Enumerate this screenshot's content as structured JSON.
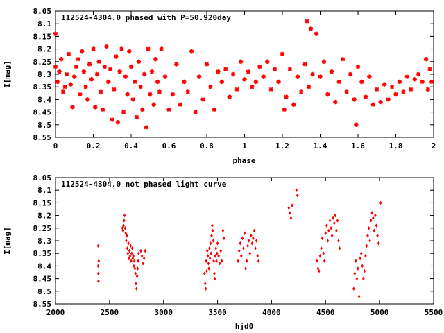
{
  "chart_data": [
    {
      "type": "scatter",
      "title": "112524-4304.0 phased with P=50.920day",
      "xlabel": "phase",
      "ylabel": "I[mag]",
      "xlim": [
        0,
        2
      ],
      "ylim": [
        8.55,
        8.05
      ],
      "y_inverted": true,
      "grid": false,
      "marker": "star",
      "color": "#ff0000",
      "xticks": [
        0,
        0.2,
        0.4,
        0.6,
        0.8,
        1,
        1.2,
        1.4,
        1.6,
        1.8,
        2
      ],
      "xtick_labels": [
        "0",
        "0.2",
        "0.4",
        "0.6",
        "0.8",
        "1",
        "1.2",
        "1.4",
        "1.6",
        "1.8",
        "2"
      ],
      "yticks": [
        8.05,
        8.1,
        8.15,
        8.2,
        8.25,
        8.3,
        8.35,
        8.4,
        8.45,
        8.5,
        8.55
      ],
      "ytick_labels": [
        "8.05",
        "8.1",
        "8.15",
        "8.2",
        "8.25",
        "8.3",
        "8.35",
        "8.4",
        "8.45",
        "8.5",
        "8.55"
      ],
      "points": [
        [
          0.0,
          8.14
        ],
        [
          0.0,
          8.27
        ],
        [
          0.01,
          8.33
        ],
        [
          0.02,
          8.29
        ],
        [
          0.03,
          8.24
        ],
        [
          0.04,
          8.37
        ],
        [
          0.05,
          8.35
        ],
        [
          0.06,
          8.3
        ],
        [
          0.07,
          8.22
        ],
        [
          0.08,
          8.34
        ],
        [
          0.09,
          8.43
        ],
        [
          0.1,
          8.31
        ],
        [
          0.11,
          8.27
        ],
        [
          0.12,
          8.24
        ],
        [
          0.13,
          8.38
        ],
        [
          0.14,
          8.21
        ],
        [
          0.15,
          8.29
        ],
        [
          0.16,
          8.35
        ],
        [
          0.17,
          8.4
        ],
        [
          0.18,
          8.26
        ],
        [
          0.19,
          8.32
        ],
        [
          0.2,
          8.2
        ],
        [
          0.21,
          8.43
        ],
        [
          0.22,
          8.3
        ],
        [
          0.23,
          8.25
        ],
        [
          0.24,
          8.37
        ],
        [
          0.25,
          8.44
        ],
        [
          0.26,
          8.27
        ],
        [
          0.27,
          8.19
        ],
        [
          0.28,
          8.33
        ],
        [
          0.29,
          8.28
        ],
        [
          0.3,
          8.48
        ],
        [
          0.31,
          8.36
        ],
        [
          0.32,
          8.23
        ],
        [
          0.33,
          8.49
        ],
        [
          0.34,
          8.29
        ],
        [
          0.35,
          8.2
        ],
        [
          0.36,
          8.45
        ],
        [
          0.37,
          8.31
        ],
        [
          0.38,
          8.38
        ],
        [
          0.39,
          8.21
        ],
        [
          0.4,
          8.27
        ],
        [
          0.41,
          8.4
        ],
        [
          0.42,
          8.33
        ],
        [
          0.43,
          8.47
        ],
        [
          0.44,
          8.25
        ],
        [
          0.45,
          8.35
        ],
        [
          0.46,
          8.44
        ],
        [
          0.47,
          8.3
        ],
        [
          0.48,
          8.51
        ],
        [
          0.49,
          8.2
        ],
        [
          0.5,
          8.38
        ],
        [
          0.51,
          8.29
        ],
        [
          0.52,
          8.42
        ],
        [
          0.53,
          8.24
        ],
        [
          0.54,
          8.33
        ],
        [
          0.55,
          8.37
        ],
        [
          0.56,
          8.2
        ],
        [
          0.58,
          8.31
        ],
        [
          0.6,
          8.44
        ],
        [
          0.62,
          8.38
        ],
        [
          0.64,
          8.26
        ],
        [
          0.66,
          8.42
        ],
        [
          0.68,
          8.33
        ],
        [
          0.7,
          8.37
        ],
        [
          0.72,
          8.21
        ],
        [
          0.74,
          8.45
        ],
        [
          0.76,
          8.31
        ],
        [
          0.78,
          8.4
        ],
        [
          0.8,
          8.26
        ],
        [
          0.82,
          8.35
        ],
        [
          0.84,
          8.44
        ],
        [
          0.86,
          8.29
        ],
        [
          0.88,
          8.33
        ],
        [
          0.9,
          8.28
        ],
        [
          0.92,
          8.39
        ],
        [
          0.94,
          8.3
        ],
        [
          0.96,
          8.36
        ],
        [
          0.98,
          8.25
        ],
        [
          1.0,
          8.32
        ],
        [
          1.02,
          8.29
        ],
        [
          1.04,
          8.35
        ],
        [
          1.06,
          8.33
        ],
        [
          1.08,
          8.27
        ],
        [
          1.1,
          8.31
        ],
        [
          1.12,
          8.25
        ],
        [
          1.14,
          8.36
        ],
        [
          1.16,
          8.28
        ],
        [
          1.18,
          8.33
        ],
        [
          1.2,
          8.22
        ],
        [
          1.21,
          8.44
        ],
        [
          1.22,
          8.39
        ],
        [
          1.24,
          8.28
        ],
        [
          1.26,
          8.42
        ],
        [
          1.28,
          8.31
        ],
        [
          1.3,
          8.37
        ],
        [
          1.32,
          8.26
        ],
        [
          1.33,
          8.09
        ],
        [
          1.34,
          8.35
        ],
        [
          1.35,
          8.12
        ],
        [
          1.36,
          8.3
        ],
        [
          1.38,
          8.14
        ],
        [
          1.4,
          8.31
        ],
        [
          1.42,
          8.25
        ],
        [
          1.44,
          8.38
        ],
        [
          1.46,
          8.29
        ],
        [
          1.48,
          8.41
        ],
        [
          1.5,
          8.33
        ],
        [
          1.52,
          8.24
        ],
        [
          1.54,
          8.37
        ],
        [
          1.56,
          8.3
        ],
        [
          1.58,
          8.4
        ],
        [
          1.59,
          8.5
        ],
        [
          1.6,
          8.27
        ],
        [
          1.62,
          8.33
        ],
        [
          1.64,
          8.39
        ],
        [
          1.66,
          8.31
        ],
        [
          1.68,
          8.42
        ],
        [
          1.7,
          8.36
        ],
        [
          1.72,
          8.41
        ],
        [
          1.74,
          8.34
        ],
        [
          1.76,
          8.4
        ],
        [
          1.78,
          8.35
        ],
        [
          1.8,
          8.38
        ],
        [
          1.82,
          8.33
        ],
        [
          1.84,
          8.37
        ],
        [
          1.86,
          8.31
        ],
        [
          1.88,
          8.36
        ],
        [
          1.9,
          8.32
        ],
        [
          1.92,
          8.3
        ],
        [
          1.94,
          8.33
        ],
        [
          1.96,
          8.24
        ],
        [
          1.97,
          8.36
        ],
        [
          1.98,
          8.28
        ],
        [
          1.99,
          8.33
        ]
      ]
    },
    {
      "type": "scatter",
      "title": "112524-4304.0 not phased light curve",
      "xlabel": "hjd0",
      "ylabel": "I[mag]",
      "xlim": [
        2000,
        5500
      ],
      "ylim": [
        8.55,
        8.05
      ],
      "y_inverted": true,
      "grid": false,
      "marker": "diamond",
      "color": "#ff0000",
      "xticks": [
        2000,
        2500,
        3000,
        3500,
        4000,
        4500,
        5000,
        5500
      ],
      "xtick_labels": [
        "2000",
        "2500",
        "3000",
        "3500",
        "4000",
        "4500",
        "5000",
        "5500"
      ],
      "yticks": [
        8.05,
        8.1,
        8.15,
        8.2,
        8.25,
        8.3,
        8.35,
        8.4,
        8.45,
        8.5,
        8.55
      ],
      "ytick_labels": [
        "8.05",
        "8.1",
        "8.15",
        "8.2",
        "8.25",
        "8.3",
        "8.35",
        "8.4",
        "8.45",
        "8.5",
        "8.55"
      ],
      "points": [
        [
          2395,
          8.32
        ],
        [
          2395,
          8.4
        ],
        [
          2397,
          8.43
        ],
        [
          2398,
          8.46
        ],
        [
          2400,
          8.38
        ],
        [
          2620,
          8.25
        ],
        [
          2625,
          8.26
        ],
        [
          2630,
          8.24
        ],
        [
          2635,
          8.22
        ],
        [
          2640,
          8.2
        ],
        [
          2645,
          8.25
        ],
        [
          2650,
          8.27
        ],
        [
          2655,
          8.3
        ],
        [
          2660,
          8.28
        ],
        [
          2665,
          8.33
        ],
        [
          2670,
          8.35
        ],
        [
          2675,
          8.31
        ],
        [
          2680,
          8.37
        ],
        [
          2685,
          8.34
        ],
        [
          2690,
          8.36
        ],
        [
          2695,
          8.32
        ],
        [
          2700,
          8.38
        ],
        [
          2705,
          8.35
        ],
        [
          2710,
          8.33
        ],
        [
          2715,
          8.37
        ],
        [
          2720,
          8.36
        ],
        [
          2725,
          8.4
        ],
        [
          2730,
          8.38
        ],
        [
          2735,
          8.41
        ],
        [
          2740,
          8.43
        ],
        [
          2745,
          8.47
        ],
        [
          2750,
          8.49
        ],
        [
          2755,
          8.44
        ],
        [
          2760,
          8.41
        ],
        [
          2765,
          8.38
        ],
        [
          2770,
          8.35
        ],
        [
          2790,
          8.34
        ],
        [
          2800,
          8.36
        ],
        [
          2810,
          8.39
        ],
        [
          2820,
          8.37
        ],
        [
          2830,
          8.34
        ],
        [
          3380,
          8.43
        ],
        [
          3385,
          8.47
        ],
        [
          3390,
          8.49
        ],
        [
          3395,
          8.38
        ],
        [
          3400,
          8.42
        ],
        [
          3405,
          8.34
        ],
        [
          3410,
          8.36
        ],
        [
          3415,
          8.39
        ],
        [
          3420,
          8.41
        ],
        [
          3425,
          8.33
        ],
        [
          3430,
          8.37
        ],
        [
          3435,
          8.31
        ],
        [
          3440,
          8.35
        ],
        [
          3445,
          8.28
        ],
        [
          3450,
          8.24
        ],
        [
          3455,
          8.26
        ],
        [
          3460,
          8.3
        ],
        [
          3465,
          8.38
        ],
        [
          3470,
          8.43
        ],
        [
          3475,
          8.45
        ],
        [
          3480,
          8.36
        ],
        [
          3485,
          8.33
        ],
        [
          3490,
          8.38
        ],
        [
          3495,
          8.35
        ],
        [
          3500,
          8.31
        ],
        [
          3510,
          8.36
        ],
        [
          3520,
          8.39
        ],
        [
          3530,
          8.34
        ],
        [
          3540,
          8.38
        ],
        [
          3550,
          8.26
        ],
        [
          3560,
          8.29
        ],
        [
          3690,
          8.38
        ],
        [
          3700,
          8.34
        ],
        [
          3710,
          8.31
        ],
        [
          3720,
          8.36
        ],
        [
          3730,
          8.29
        ],
        [
          3740,
          8.33
        ],
        [
          3750,
          8.27
        ],
        [
          3760,
          8.41
        ],
        [
          3770,
          8.38
        ],
        [
          3780,
          8.32
        ],
        [
          3790,
          8.3
        ],
        [
          3800,
          8.35
        ],
        [
          3810,
          8.28
        ],
        [
          3820,
          8.31
        ],
        [
          3830,
          8.29
        ],
        [
          3840,
          8.26
        ],
        [
          3850,
          8.33
        ],
        [
          3860,
          8.3
        ],
        [
          3870,
          8.36
        ],
        [
          3880,
          8.38
        ],
        [
          4160,
          8.17
        ],
        [
          4170,
          8.19
        ],
        [
          4180,
          8.21
        ],
        [
          4190,
          8.16
        ],
        [
          4230,
          8.1
        ],
        [
          4240,
          8.12
        ],
        [
          4420,
          8.38
        ],
        [
          4430,
          8.41
        ],
        [
          4440,
          8.42
        ],
        [
          4450,
          8.36
        ],
        [
          4460,
          8.33
        ],
        [
          4470,
          8.29
        ],
        [
          4480,
          8.35
        ],
        [
          4490,
          8.38
        ],
        [
          4500,
          8.27
        ],
        [
          4510,
          8.24
        ],
        [
          4520,
          8.3
        ],
        [
          4530,
          8.26
        ],
        [
          4540,
          8.22
        ],
        [
          4550,
          8.25
        ],
        [
          4560,
          8.28
        ],
        [
          4570,
          8.21
        ],
        [
          4580,
          8.23
        ],
        [
          4590,
          8.2
        ],
        [
          4600,
          8.26
        ],
        [
          4610,
          8.22
        ],
        [
          4620,
          8.3
        ],
        [
          4630,
          8.33
        ],
        [
          4760,
          8.49
        ],
        [
          4770,
          8.43
        ],
        [
          4780,
          8.38
        ],
        [
          4790,
          8.45
        ],
        [
          4800,
          8.41
        ],
        [
          4810,
          8.52
        ],
        [
          4820,
          8.37
        ],
        [
          4830,
          8.35
        ],
        [
          4840,
          8.4
        ],
        [
          4850,
          8.45
        ],
        [
          4860,
          8.42
        ],
        [
          4870,
          8.36
        ],
        [
          4880,
          8.32
        ],
        [
          4890,
          8.28
        ],
        [
          4900,
          8.25
        ],
        [
          4910,
          8.3
        ],
        [
          4920,
          8.22
        ],
        [
          4930,
          8.19
        ],
        [
          4940,
          8.21
        ],
        [
          4950,
          8.26
        ],
        [
          4960,
          8.2
        ],
        [
          4970,
          8.24
        ],
        [
          4980,
          8.28
        ],
        [
          4990,
          8.31
        ],
        [
          5010,
          8.15
        ]
      ]
    }
  ]
}
